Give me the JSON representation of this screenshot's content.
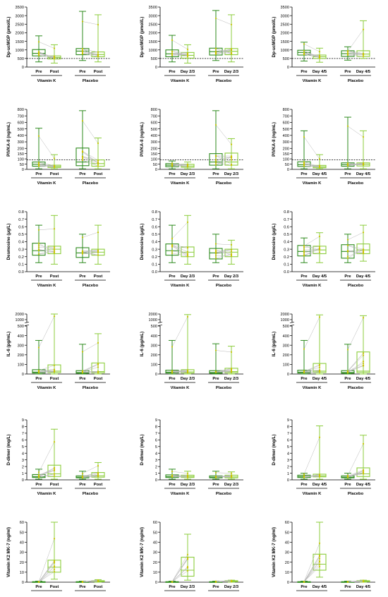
{
  "colors": {
    "box_dark": "#2e8b1e",
    "box_light": "#8ccd3c",
    "dot": "#c9c400",
    "line": "#b8b8b8",
    "axis": "#000000"
  },
  "chart_data": [
    {
      "id": "dpuc-post",
      "type": "box",
      "ylabel": "Dp-ucMGP (pmol/L)",
      "ylim": [
        0,
        3500
      ],
      "yticks": [
        "0",
        "500",
        "1000",
        "1500",
        "2000",
        "2500",
        "3000",
        "3500"
      ],
      "threshold": 500,
      "groups": [
        "Vitamin K",
        "Placebo"
      ],
      "timepoints": [
        "Pre",
        "Post"
      ],
      "boxes": [
        {
          "min": 300,
          "q1": 650,
          "med": 800,
          "q3": 1020,
          "max": 1820
        },
        {
          "min": 230,
          "q1": 470,
          "med": 560,
          "q3": 650,
          "max": 1300
        },
        {
          "min": 380,
          "q1": 720,
          "med": 930,
          "q3": 1080,
          "max": 3250
        },
        {
          "min": 300,
          "q1": 600,
          "med": 730,
          "q3": 880,
          "max": 3050
        }
      ]
    },
    {
      "id": "dpuc-d23",
      "type": "box",
      "ylabel": "Dp-ucMGP (pmol/L)",
      "ylim": [
        0,
        3500
      ],
      "yticks": [
        "0",
        "500",
        "1000",
        "1500",
        "2000",
        "2500",
        "3000",
        "3500"
      ],
      "threshold": 500,
      "groups": [
        "Vitamin K",
        "Placebo"
      ],
      "timepoints": [
        "Pre",
        "Day 2/3"
      ],
      "boxes": [
        {
          "min": 300,
          "q1": 600,
          "med": 770,
          "q3": 1000,
          "max": 1850
        },
        {
          "min": 230,
          "q1": 520,
          "med": 680,
          "q3": 850,
          "max": 1300
        },
        {
          "min": 380,
          "q1": 700,
          "med": 900,
          "q3": 1100,
          "max": 3300
        },
        {
          "min": 300,
          "q1": 720,
          "med": 920,
          "q3": 1080,
          "max": 3050
        }
      ]
    },
    {
      "id": "dpuc-d45",
      "type": "box",
      "ylabel": "Dp-ucMGP (pmol/L)",
      "ylim": [
        0,
        3500
      ],
      "yticks": [
        "0",
        "500",
        "1000",
        "1500",
        "2000",
        "2500",
        "3000",
        "3500"
      ],
      "threshold": 500,
      "groups": [
        "Vitamin K",
        "Placebo"
      ],
      "timepoints": [
        "Pre",
        "Day 4/5"
      ],
      "boxes": [
        {
          "min": 350,
          "q1": 700,
          "med": 850,
          "q3": 980,
          "max": 1450
        },
        {
          "min": 280,
          "q1": 500,
          "med": 600,
          "q3": 700,
          "max": 1100
        },
        {
          "min": 400,
          "q1": 620,
          "med": 780,
          "q3": 950,
          "max": 1180
        },
        {
          "min": 500,
          "q1": 620,
          "med": 760,
          "q3": 950,
          "max": 2700
        }
      ]
    },
    {
      "id": "pivka-post",
      "type": "box",
      "ylabel": "PIVKA-II (ng/mL)",
      "ylim": [
        0,
        800
      ],
      "yticks": [
        "0",
        "50",
        "100",
        "150",
        "200",
        "300",
        "400",
        "500",
        "600",
        "700",
        "800"
      ],
      "threshold": 90,
      "groups": [
        "Vitamin K",
        "Placebo"
      ],
      "timepoints": [
        "Pre",
        "Post"
      ],
      "boxes": [
        {
          "min": 5,
          "q1": 30,
          "med": 48,
          "q3": 70,
          "max": 510
        },
        {
          "min": 5,
          "q1": 18,
          "med": 28,
          "q3": 40,
          "max": 140
        },
        {
          "min": 5,
          "q1": 35,
          "med": 70,
          "q3": 205,
          "max": 780
        },
        {
          "min": 5,
          "q1": 30,
          "med": 55,
          "q3": 90,
          "max": 360
        }
      ]
    },
    {
      "id": "pivka-d23",
      "type": "box",
      "ylabel": "PIVKA-II (ng/mL)",
      "ylim": [
        0,
        800
      ],
      "yticks": [
        "0",
        "50",
        "100",
        "150",
        "200",
        "300",
        "400",
        "500",
        "600",
        "700",
        "800"
      ],
      "threshold": 90,
      "groups": [
        "Vitamin K",
        "Placebo"
      ],
      "timepoints": [
        "Pre",
        "Day 2/3"
      ],
      "boxes": [
        {
          "min": 5,
          "q1": 25,
          "med": 40,
          "q3": 55,
          "max": 80
        },
        {
          "min": 5,
          "q1": 20,
          "med": 32,
          "q3": 48,
          "max": 70
        },
        {
          "min": 5,
          "q1": 40,
          "med": 70,
          "q3": 150,
          "max": 780
        },
        {
          "min": 5,
          "q1": 40,
          "med": 70,
          "q3": 155,
          "max": 350
        }
      ]
    },
    {
      "id": "pivka-d45",
      "type": "box",
      "ylabel": "PIVKA-II (ng/mL)",
      "ylim": [
        0,
        800
      ],
      "yticks": [
        "0",
        "50",
        "100",
        "150",
        "200",
        "300",
        "400",
        "500",
        "600",
        "700",
        "800"
      ],
      "threshold": 90,
      "groups": [
        "Vitamin K",
        "Placebo"
      ],
      "timepoints": [
        "Pre",
        "Day 4/5"
      ],
      "boxes": [
        {
          "min": 5,
          "q1": 28,
          "med": 45,
          "q3": 72,
          "max": 470
        },
        {
          "min": 5,
          "q1": 15,
          "med": 25,
          "q3": 38,
          "max": 140
        },
        {
          "min": 5,
          "q1": 30,
          "med": 45,
          "q3": 62,
          "max": 680
        },
        {
          "min": 5,
          "q1": 32,
          "med": 48,
          "q3": 62,
          "max": 470
        }
      ]
    },
    {
      "id": "desmo-post",
      "type": "box",
      "ylabel": "Desmosine (µg/L)",
      "ylim": [
        0,
        0.8
      ],
      "yticks": [
        "0.0",
        "0.1",
        "0.2",
        "0.3",
        "0.4",
        "0.5",
        "0.6",
        "0.7",
        "0.8"
      ],
      "groups": [
        "Vitamin K",
        "Placebo"
      ],
      "timepoints": [
        "Pre",
        "Post"
      ],
      "boxes": [
        {
          "min": 0.12,
          "q1": 0.22,
          "med": 0.28,
          "q3": 0.38,
          "max": 0.62
        },
        {
          "min": 0.1,
          "q1": 0.24,
          "med": 0.3,
          "q3": 0.34,
          "max": 0.75
        },
        {
          "min": 0.12,
          "q1": 0.19,
          "med": 0.25,
          "q3": 0.32,
          "max": 0.5
        },
        {
          "min": 0.1,
          "q1": 0.22,
          "med": 0.26,
          "q3": 0.3,
          "max": 0.62
        }
      ]
    },
    {
      "id": "desmo-d23",
      "type": "box",
      "ylabel": "Desmosine (µg/L)",
      "ylim": [
        0,
        0.8
      ],
      "yticks": [
        "0.0",
        "0.1",
        "0.2",
        "0.3",
        "0.4",
        "0.5",
        "0.6",
        "0.7",
        "0.8"
      ],
      "groups": [
        "Vitamin K",
        "Placebo"
      ],
      "timepoints": [
        "Pre",
        "Day 2/3"
      ],
      "boxes": [
        {
          "min": 0.12,
          "q1": 0.22,
          "med": 0.28,
          "q3": 0.37,
          "max": 0.62
        },
        {
          "min": 0.1,
          "q1": 0.2,
          "med": 0.26,
          "q3": 0.33,
          "max": 0.75
        },
        {
          "min": 0.12,
          "q1": 0.17,
          "med": 0.25,
          "q3": 0.31,
          "max": 0.5
        },
        {
          "min": 0.1,
          "q1": 0.2,
          "med": 0.26,
          "q3": 0.3,
          "max": 0.42
        }
      ]
    },
    {
      "id": "desmo-d45",
      "type": "box",
      "ylabel": "Desmosine (µg/L)",
      "ylim": [
        0,
        0.8
      ],
      "yticks": [
        "0.0",
        "0.1",
        "0.2",
        "0.3",
        "0.4",
        "0.5",
        "0.6",
        "0.7",
        "0.8"
      ],
      "groups": [
        "Vitamin K",
        "Placebo"
      ],
      "timepoints": [
        "Pre",
        "Day 4/5"
      ],
      "boxes": [
        {
          "min": 0.12,
          "q1": 0.21,
          "med": 0.27,
          "q3": 0.35,
          "max": 0.45
        },
        {
          "min": 0.12,
          "q1": 0.24,
          "med": 0.29,
          "q3": 0.34,
          "max": 0.52
        },
        {
          "min": 0.12,
          "q1": 0.18,
          "med": 0.27,
          "q3": 0.36,
          "max": 0.5
        },
        {
          "min": 0.14,
          "q1": 0.24,
          "med": 0.29,
          "q3": 0.37,
          "max": 0.62
        }
      ]
    },
    {
      "id": "il6-post",
      "type": "box",
      "ylabel": "IL-6 (pg/mL)",
      "ylim": [
        0,
        2000
      ],
      "broken": true,
      "yticks": [
        "0",
        "100",
        "200",
        "300",
        "400",
        "500",
        "1000",
        "2000"
      ],
      "groups": [
        "Vitamin K",
        "Placebo"
      ],
      "timepoints": [
        "Pre",
        "Post"
      ],
      "boxes": [
        {
          "min": 0,
          "q1": 10,
          "med": 20,
          "q3": 45,
          "max": 350
        },
        {
          "min": 0,
          "q1": 15,
          "med": 30,
          "q3": 95,
          "max": 2000
        },
        {
          "min": 0,
          "q1": 8,
          "med": 15,
          "q3": 35,
          "max": 310
        },
        {
          "min": 0,
          "q1": 12,
          "med": 25,
          "q3": 115,
          "max": 420
        }
      ]
    },
    {
      "id": "il6-d23",
      "type": "box",
      "ylabel": "IL-6 (pg/mL)",
      "ylim": [
        0,
        2000
      ],
      "broken": true,
      "yticks": [
        "0",
        "100",
        "200",
        "300",
        "400",
        "500",
        "1000",
        "2000"
      ],
      "groups": [
        "Vitamin K",
        "Placebo"
      ],
      "timepoints": [
        "Pre",
        "Day 2/3"
      ],
      "boxes": [
        {
          "min": 0,
          "q1": 10,
          "med": 20,
          "q3": 40,
          "max": 350
        },
        {
          "min": 0,
          "q1": 10,
          "med": 22,
          "q3": 45,
          "max": 1900
        },
        {
          "min": 0,
          "q1": 8,
          "med": 15,
          "q3": 35,
          "max": 315
        },
        {
          "min": 0,
          "q1": 12,
          "med": 25,
          "q3": 60,
          "max": 290
        }
      ]
    },
    {
      "id": "il6-d45",
      "type": "box",
      "ylabel": "IL-6 (pg/mL)",
      "ylim": [
        0,
        2000
      ],
      "broken": true,
      "yticks": [
        "0",
        "100",
        "200",
        "300",
        "400",
        "500",
        "1000",
        "2000"
      ],
      "groups": [
        "Vitamin K",
        "Placebo"
      ],
      "timepoints": [
        "Pre",
        "Day 4/5"
      ],
      "boxes": [
        {
          "min": 0,
          "q1": 10,
          "med": 20,
          "q3": 40,
          "max": 350
        },
        {
          "min": 0,
          "q1": 15,
          "med": 30,
          "q3": 110,
          "max": 1850
        },
        {
          "min": 0,
          "q1": 8,
          "med": 15,
          "q3": 35,
          "max": 310
        },
        {
          "min": 0,
          "q1": 15,
          "med": 30,
          "q3": 230,
          "max": 1700
        }
      ]
    },
    {
      "id": "dd-post",
      "type": "box",
      "ylabel": "D-dimer (mg/L)",
      "ylim": [
        0,
        9
      ],
      "yticks": [
        "0",
        "1",
        "2",
        "3",
        "4",
        "5",
        "6",
        "7",
        "8",
        "9"
      ],
      "groups": [
        "Vitamin K",
        "Placebo"
      ],
      "timepoints": [
        "Pre",
        "Post"
      ],
      "boxes": [
        {
          "min": 0.1,
          "q1": 0.35,
          "med": 0.5,
          "q3": 0.8,
          "max": 1.6
        },
        {
          "min": 0.1,
          "q1": 0.5,
          "med": 0.9,
          "q3": 2.2,
          "max": 7.6
        },
        {
          "min": 0.1,
          "q1": 0.3,
          "med": 0.4,
          "q3": 0.6,
          "max": 1.3
        },
        {
          "min": 0.1,
          "q1": 0.4,
          "med": 0.6,
          "q3": 1.1,
          "max": 2.6
        }
      ]
    },
    {
      "id": "dd-d23",
      "type": "box",
      "ylabel": "D-dimer (mg/L)",
      "ylim": [
        0,
        9
      ],
      "yticks": [
        "0",
        "1",
        "2",
        "3",
        "4",
        "5",
        "6",
        "7",
        "8",
        "9"
      ],
      "groups": [
        "Vitamin K",
        "Placebo"
      ],
      "timepoints": [
        "Pre",
        "Day 2/3"
      ],
      "boxes": [
        {
          "min": 0.1,
          "q1": 0.35,
          "med": 0.5,
          "q3": 0.75,
          "max": 1.6
        },
        {
          "min": 0.1,
          "q1": 0.35,
          "med": 0.5,
          "q3": 0.7,
          "max": 1.3
        },
        {
          "min": 0.1,
          "q1": 0.3,
          "med": 0.4,
          "q3": 0.6,
          "max": 1.3
        },
        {
          "min": 0.1,
          "q1": 0.3,
          "med": 0.45,
          "q3": 0.7,
          "max": 1.2
        }
      ]
    },
    {
      "id": "dd-d45",
      "type": "box",
      "ylabel": "D-dimer (mg/L)",
      "ylim": [
        0,
        9
      ],
      "yticks": [
        "0",
        "1",
        "2",
        "3",
        "4",
        "5",
        "6",
        "7",
        "8",
        "9"
      ],
      "groups": [
        "Vitamin K",
        "Placebo"
      ],
      "timepoints": [
        "Pre",
        "Day 4/5"
      ],
      "boxes": [
        {
          "min": 0.1,
          "q1": 0.35,
          "med": 0.5,
          "q3": 0.7,
          "max": 1.0
        },
        {
          "min": 0.1,
          "q1": 0.45,
          "med": 0.6,
          "q3": 0.85,
          "max": 8.1
        },
        {
          "min": 0.1,
          "q1": 0.3,
          "med": 0.4,
          "q3": 0.6,
          "max": 1.0
        },
        {
          "min": 0.1,
          "q1": 0.5,
          "med": 0.9,
          "q3": 1.8,
          "max": 6.7
        }
      ]
    },
    {
      "id": "mk7-post",
      "type": "box",
      "ylabel": "Vitamin K2 MK-7 (ng/ml)",
      "ylim": [
        0,
        60
      ],
      "yticks": [
        "0",
        "10",
        "20",
        "30",
        "40",
        "50",
        "60"
      ],
      "groups": [
        "Vitamin K",
        "Placebo"
      ],
      "timepoints": [
        "Pre",
        "Post"
      ],
      "boxes": [
        {
          "min": 0,
          "q1": 0,
          "med": 0.3,
          "q3": 0.5,
          "max": 1
        },
        {
          "min": 3,
          "q1": 10,
          "med": 15,
          "q3": 22,
          "max": 60
        },
        {
          "min": 0,
          "q1": 0,
          "med": 0.3,
          "q3": 0.5,
          "max": 1
        },
        {
          "min": 0,
          "q1": 0.5,
          "med": 1,
          "q3": 1.5,
          "max": 2.5
        }
      ]
    },
    {
      "id": "mk7-d23",
      "type": "box",
      "ylabel": "Vitamin K2 MK-7 (ng/ml)",
      "ylim": [
        0,
        60
      ],
      "yticks": [
        "0",
        "10",
        "20",
        "30",
        "40",
        "50",
        "60"
      ],
      "groups": [
        "Vitamin K",
        "Placebo"
      ],
      "timepoints": [
        "Pre",
        "Day 2/3"
      ],
      "boxes": [
        {
          "min": 0,
          "q1": 0,
          "med": 0.3,
          "q3": 0.5,
          "max": 1
        },
        {
          "min": 2,
          "q1": 6,
          "med": 12,
          "q3": 25,
          "max": 48
        },
        {
          "min": 0,
          "q1": 0,
          "med": 0.3,
          "q3": 0.5,
          "max": 1
        },
        {
          "min": 0,
          "q1": 0.5,
          "med": 1,
          "q3": 1.5,
          "max": 2
        }
      ]
    },
    {
      "id": "mk7-d45",
      "type": "box",
      "ylabel": "Vitamin K2 MK-7 (ng/ml)",
      "ylim": [
        0,
        60
      ],
      "yticks": [
        "0",
        "10",
        "20",
        "30",
        "40",
        "50",
        "60"
      ],
      "groups": [
        "Vitamin K",
        "Placebo"
      ],
      "timepoints": [
        "Pre",
        "Day 4/5"
      ],
      "boxes": [
        {
          "min": 0,
          "q1": 0,
          "med": 0.3,
          "q3": 0.5,
          "max": 1
        },
        {
          "min": 5,
          "q1": 12,
          "med": 18,
          "q3": 28,
          "max": 60
        },
        {
          "min": 0,
          "q1": 0,
          "med": 0.3,
          "q3": 0.5,
          "max": 1
        },
        {
          "min": 0,
          "q1": 0.5,
          "med": 1,
          "q3": 1.5,
          "max": 2
        }
      ]
    }
  ]
}
